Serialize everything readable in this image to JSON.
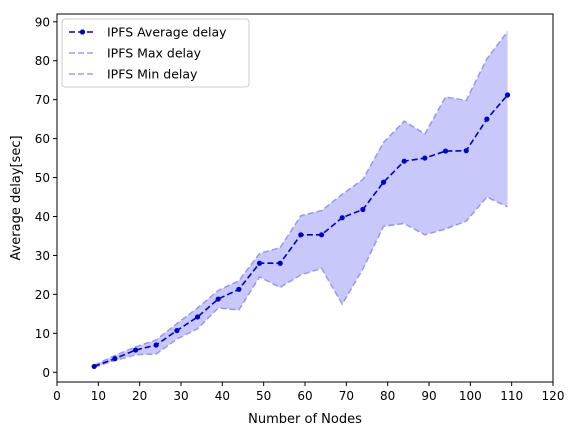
{
  "chart_data": {
    "type": "line",
    "title": "",
    "xlabel": "Number of Nodes",
    "ylabel": "Average delay[sec]",
    "xlim": [
      0,
      120
    ],
    "ylim": [
      -2.5,
      92
    ],
    "x_ticks": [
      0,
      10,
      20,
      30,
      40,
      50,
      60,
      70,
      80,
      90,
      100,
      110,
      120
    ],
    "y_ticks": [
      0,
      10,
      20,
      30,
      40,
      50,
      60,
      70,
      80,
      90
    ],
    "grid": false,
    "legend_position": "top-left",
    "x": [
      9,
      14,
      19,
      24,
      29,
      34,
      39,
      44,
      49,
      54,
      59,
      64,
      69,
      74,
      79,
      84,
      89,
      94,
      99,
      104,
      109
    ],
    "series": [
      {
        "name": "IPFS Average delay",
        "color": "#0000cc",
        "style": "dashed-with-dots",
        "values": [
          1.5,
          3.5,
          5.7,
          7.0,
          10.7,
          14.2,
          18.8,
          21.3,
          28.0,
          28.0,
          35.3,
          35.3,
          39.7,
          41.8,
          48.8,
          54.2,
          55.0,
          56.8,
          56.9,
          65.0,
          71.2
        ]
      },
      {
        "name": "IPFS Max delay",
        "color": "#8a8af2",
        "style": "dashed",
        "values": [
          1.8,
          4.3,
          6.5,
          8.3,
          12.5,
          16.5,
          21.0,
          23.5,
          30.5,
          32.0,
          40.2,
          41.5,
          45.7,
          49.5,
          59.0,
          64.5,
          61.2,
          70.7,
          69.8,
          80.5,
          87.5
        ]
      },
      {
        "name": "IPFS Min delay",
        "color": "#8a8af2",
        "style": "dashed",
        "values": [
          1.3,
          3.0,
          4.5,
          4.7,
          8.5,
          11.2,
          16.5,
          16.0,
          24.5,
          21.8,
          25.0,
          26.7,
          17.5,
          26.5,
          37.5,
          38.2,
          35.3,
          36.8,
          38.8,
          45.0,
          42.5
        ]
      }
    ],
    "fill_between": {
      "upper": "IPFS Max delay",
      "lower": "IPFS Min delay",
      "color": "#c8c8fa"
    }
  }
}
